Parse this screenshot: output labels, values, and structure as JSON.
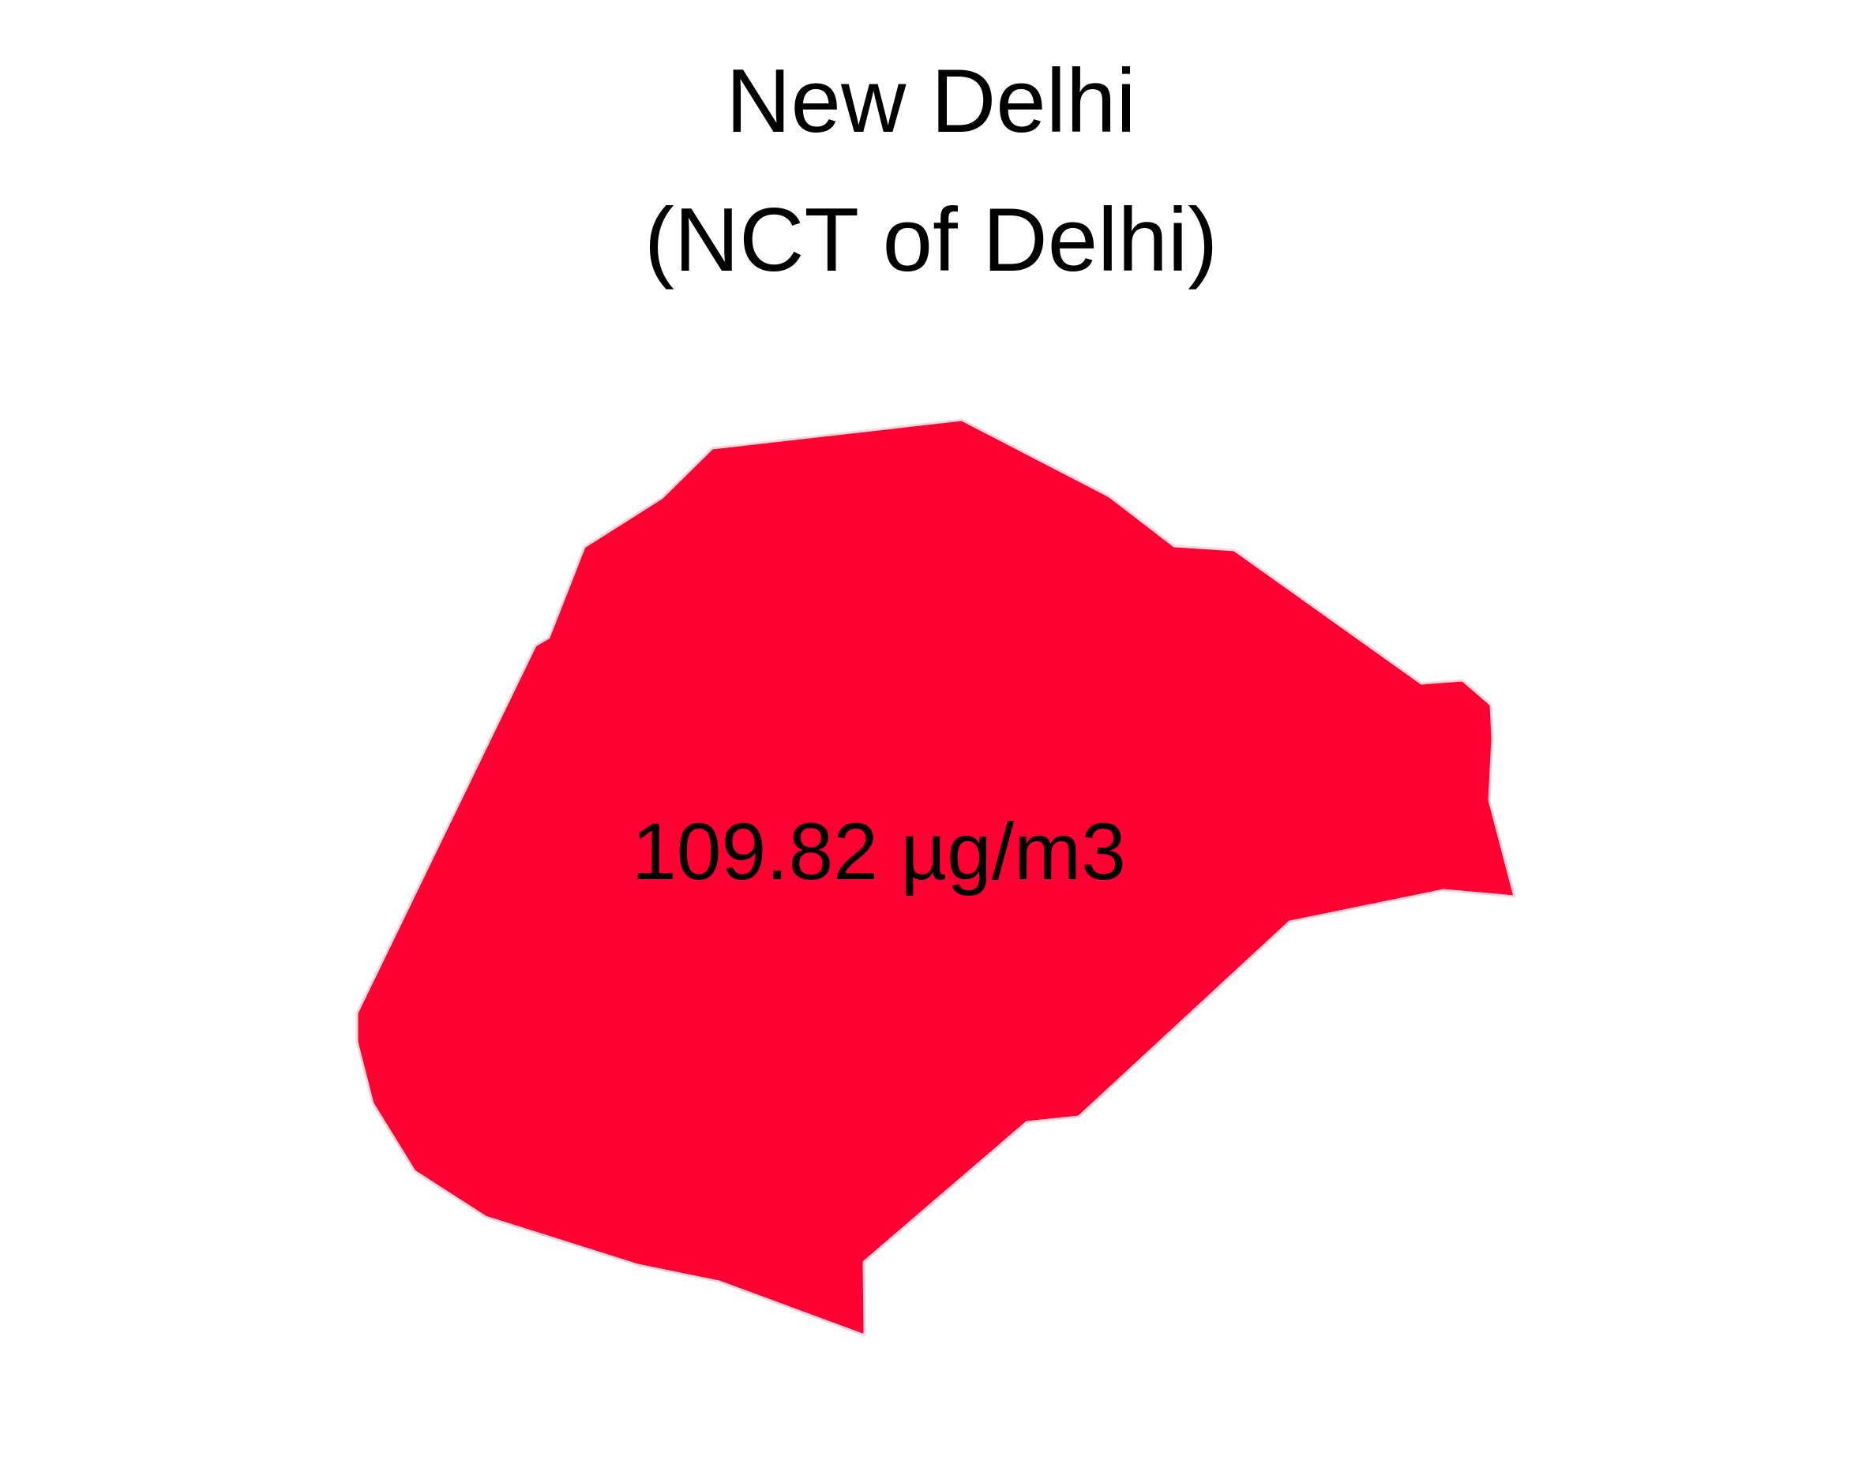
{
  "map": {
    "title_line1": "New Delhi",
    "title_line2": "(NCT of Delhi)",
    "region": {
      "name": "NCT of Delhi",
      "value_label": "109.82 µg/m3",
      "value": 109.82,
      "unit": "µg/m3",
      "fill_color": "#ff0033",
      "stroke_color": "#ffd6dc"
    }
  }
}
